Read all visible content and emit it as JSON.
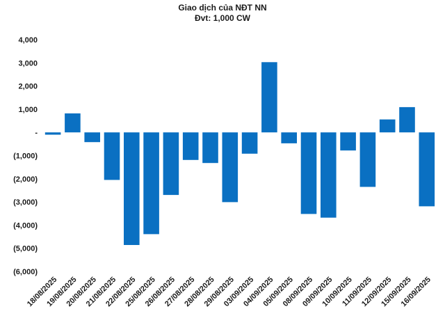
{
  "chart_data": {
    "type": "bar",
    "title": "Giao dịch của NĐT NN",
    "subtitle": "Đvt: 1,000 CW",
    "xlabel": "",
    "ylabel": "",
    "ylim": [
      -6000,
      4000
    ],
    "yticks": [
      4000,
      3000,
      2000,
      1000,
      0,
      -1000,
      -2000,
      -3000,
      -4000,
      -5000,
      -6000
    ],
    "ytick_labels": [
      "4,000",
      "3,000",
      "2,000",
      "1,000",
      "-",
      "(1,000)",
      "(2,000)",
      "(3,000)",
      "(4,000)",
      "(5,000)",
      "(6,000)"
    ],
    "grid": false,
    "legend": "none",
    "bar_color": "#0a70c2",
    "categories": [
      "18/08/2025",
      "19/08/2025",
      "20/08/2025",
      "21/08/2025",
      "22/08/2025",
      "25/08/2025",
      "26/08/2025",
      "27/08/2025",
      "28/08/2025",
      "29/08/2025",
      "03/09/2025",
      "04/09/2025",
      "05/09/2025",
      "08/09/2025",
      "09/09/2025",
      "10/09/2025",
      "11/09/2025",
      "12/09/2025",
      "15/09/2025",
      "16/09/2025"
    ],
    "values": [
      -100,
      820,
      -420,
      -2050,
      -4860,
      -4390,
      -2700,
      -1190,
      -1320,
      -3010,
      -920,
      3030,
      -470,
      -3520,
      -3680,
      -780,
      -2350,
      560,
      1090,
      -3190
    ]
  }
}
